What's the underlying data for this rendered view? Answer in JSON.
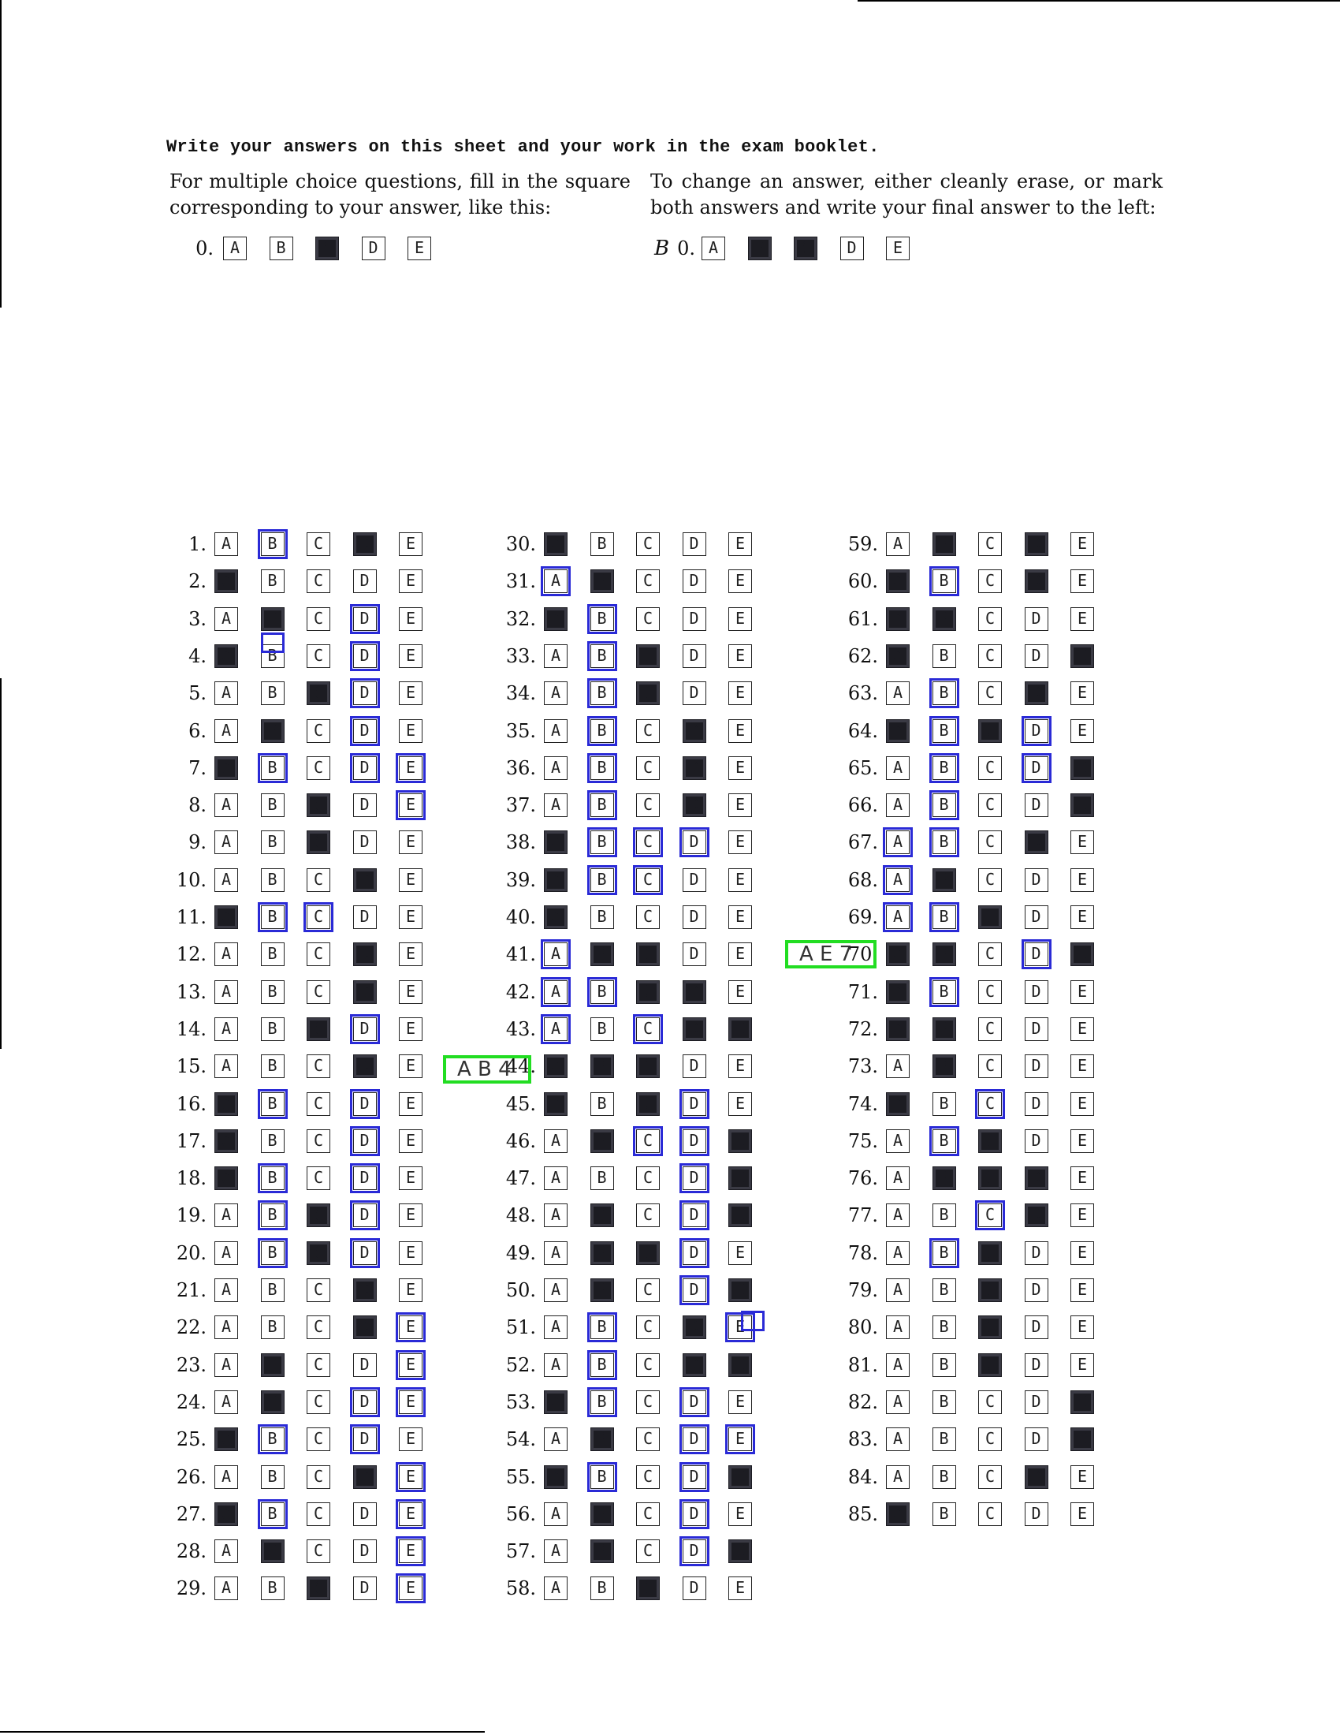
{
  "instructions": {
    "heading": "Write your answers on this sheet and your work in the exam booklet.",
    "left": "For multiple choice questions, fill in the square corresponding to your answer, like this:",
    "right": "To change an answer, either cleanly erase, or mark both answers and write your final answer to the left:"
  },
  "example_left": {
    "number": "0.",
    "filled": [
      "C"
    ]
  },
  "example_right": {
    "handwritten": "B",
    "number": "0.",
    "filled": [
      "B",
      "C"
    ]
  },
  "choices": [
    "A",
    "B",
    "C",
    "D",
    "E"
  ],
  "marks": [
    {
      "near": 44,
      "text": "A B 4"
    },
    {
      "near": 70,
      "text": "A E 7"
    }
  ],
  "questions": [
    {
      "n": 1,
      "filled": [
        "D"
      ],
      "outlined": [
        "B"
      ]
    },
    {
      "n": 2,
      "filled": [
        "A"
      ],
      "outlined": []
    },
    {
      "n": 3,
      "filled": [
        "B"
      ],
      "outlined": [
        "D"
      ]
    },
    {
      "n": 4,
      "filled": [
        "A"
      ],
      "outlined": [
        "D"
      ]
    },
    {
      "n": 5,
      "filled": [
        "C"
      ],
      "outlined": [
        "D"
      ]
    },
    {
      "n": 6,
      "filled": [
        "B"
      ],
      "outlined": [
        "D"
      ]
    },
    {
      "n": 7,
      "filled": [
        "A"
      ],
      "outlined": [
        "B",
        "D",
        "E"
      ]
    },
    {
      "n": 8,
      "filled": [
        "C"
      ],
      "outlined": [
        "E"
      ]
    },
    {
      "n": 9,
      "filled": [
        "C"
      ],
      "outlined": []
    },
    {
      "n": 10,
      "filled": [
        "D"
      ],
      "outlined": []
    },
    {
      "n": 11,
      "filled": [
        "A"
      ],
      "outlined": [
        "B",
        "C"
      ]
    },
    {
      "n": 12,
      "filled": [
        "D"
      ],
      "outlined": []
    },
    {
      "n": 13,
      "filled": [
        "D"
      ],
      "outlined": []
    },
    {
      "n": 14,
      "filled": [
        "C"
      ],
      "outlined": [
        "D"
      ]
    },
    {
      "n": 15,
      "filled": [
        "D"
      ],
      "outlined": []
    },
    {
      "n": 16,
      "filled": [
        "A"
      ],
      "outlined": [
        "B",
        "D"
      ]
    },
    {
      "n": 17,
      "filled": [
        "A"
      ],
      "outlined": [
        "D"
      ]
    },
    {
      "n": 18,
      "filled": [
        "A"
      ],
      "outlined": [
        "B",
        "D"
      ]
    },
    {
      "n": 19,
      "filled": [
        "C"
      ],
      "outlined": [
        "B",
        "D"
      ]
    },
    {
      "n": 20,
      "filled": [
        "C"
      ],
      "outlined": [
        "B",
        "D"
      ]
    },
    {
      "n": 21,
      "filled": [
        "D"
      ],
      "outlined": []
    },
    {
      "n": 22,
      "filled": [
        "D"
      ],
      "outlined": [
        "E"
      ]
    },
    {
      "n": 23,
      "filled": [
        "B"
      ],
      "outlined": [
        "E"
      ]
    },
    {
      "n": 24,
      "filled": [
        "B"
      ],
      "outlined": [
        "D",
        "E"
      ]
    },
    {
      "n": 25,
      "filled": [
        "A"
      ],
      "outlined": [
        "B",
        "D"
      ]
    },
    {
      "n": 26,
      "filled": [
        "D"
      ],
      "outlined": [
        "E"
      ]
    },
    {
      "n": 27,
      "filled": [
        "A"
      ],
      "outlined": [
        "B",
        "E"
      ]
    },
    {
      "n": 28,
      "filled": [
        "B"
      ],
      "outlined": [
        "E"
      ]
    },
    {
      "n": 29,
      "filled": [
        "C"
      ],
      "outlined": [
        "E"
      ]
    },
    {
      "n": 30,
      "filled": [
        "A"
      ],
      "outlined": []
    },
    {
      "n": 31,
      "filled": [
        "B"
      ],
      "outlined": [
        "A"
      ]
    },
    {
      "n": 32,
      "filled": [
        "A"
      ],
      "outlined": [
        "B"
      ]
    },
    {
      "n": 33,
      "filled": [
        "C"
      ],
      "outlined": [
        "B"
      ]
    },
    {
      "n": 34,
      "filled": [
        "C"
      ],
      "outlined": [
        "B"
      ]
    },
    {
      "n": 35,
      "filled": [
        "D"
      ],
      "outlined": [
        "B"
      ]
    },
    {
      "n": 36,
      "filled": [
        "D"
      ],
      "outlined": [
        "B"
      ]
    },
    {
      "n": 37,
      "filled": [
        "D"
      ],
      "outlined": [
        "B"
      ]
    },
    {
      "n": 38,
      "filled": [
        "A"
      ],
      "outlined": [
        "B",
        "C",
        "D"
      ]
    },
    {
      "n": 39,
      "filled": [
        "A"
      ],
      "outlined": [
        "B",
        "C"
      ]
    },
    {
      "n": 40,
      "filled": [
        "A"
      ],
      "outlined": []
    },
    {
      "n": 41,
      "filled": [
        "B",
        "C"
      ],
      "outlined": [
        "A"
      ]
    },
    {
      "n": 42,
      "filled": [
        "C",
        "D"
      ],
      "outlined": [
        "A",
        "B"
      ]
    },
    {
      "n": 43,
      "filled": [
        "D",
        "E"
      ],
      "outlined": [
        "A",
        "C"
      ]
    },
    {
      "n": 44,
      "filled": [
        "A",
        "B",
        "C"
      ],
      "outlined": []
    },
    {
      "n": 45,
      "filled": [
        "A",
        "C"
      ],
      "outlined": [
        "D"
      ]
    },
    {
      "n": 46,
      "filled": [
        "B",
        "E"
      ],
      "outlined": [
        "C",
        "D"
      ]
    },
    {
      "n": 47,
      "filled": [
        "E"
      ],
      "outlined": [
        "D"
      ]
    },
    {
      "n": 48,
      "filled": [
        "B",
        "E"
      ],
      "outlined": [
        "D"
      ]
    },
    {
      "n": 49,
      "filled": [
        "B",
        "C"
      ],
      "outlined": [
        "D"
      ]
    },
    {
      "n": 50,
      "filled": [
        "B",
        "E"
      ],
      "outlined": [
        "D"
      ]
    },
    {
      "n": 51,
      "filled": [
        "D"
      ],
      "outlined": [
        "B",
        "E"
      ]
    },
    {
      "n": 52,
      "filled": [
        "D",
        "E"
      ],
      "outlined": [
        "B"
      ]
    },
    {
      "n": 53,
      "filled": [
        "A"
      ],
      "outlined": [
        "B",
        "D"
      ]
    },
    {
      "n": 54,
      "filled": [
        "B"
      ],
      "outlined": [
        "D",
        "E"
      ]
    },
    {
      "n": 55,
      "filled": [
        "A",
        "E"
      ],
      "outlined": [
        "B",
        "D"
      ]
    },
    {
      "n": 56,
      "filled": [
        "B"
      ],
      "outlined": [
        "D"
      ]
    },
    {
      "n": 57,
      "filled": [
        "B",
        "E"
      ],
      "outlined": [
        "D"
      ]
    },
    {
      "n": 58,
      "filled": [
        "C"
      ],
      "outlined": []
    },
    {
      "n": 59,
      "filled": [
        "B",
        "D"
      ],
      "outlined": []
    },
    {
      "n": 60,
      "filled": [
        "A",
        "D"
      ],
      "outlined": [
        "B"
      ]
    },
    {
      "n": 61,
      "filled": [
        "A",
        "B"
      ],
      "outlined": []
    },
    {
      "n": 62,
      "filled": [
        "A",
        "E"
      ],
      "outlined": []
    },
    {
      "n": 63,
      "filled": [
        "D"
      ],
      "outlined": [
        "B"
      ]
    },
    {
      "n": 64,
      "filled": [
        "A",
        "C"
      ],
      "outlined": [
        "B",
        "D"
      ]
    },
    {
      "n": 65,
      "filled": [
        "E"
      ],
      "outlined": [
        "B",
        "D"
      ]
    },
    {
      "n": 66,
      "filled": [
        "E"
      ],
      "outlined": [
        "B"
      ]
    },
    {
      "n": 67,
      "filled": [
        "D"
      ],
      "outlined": [
        "A",
        "B"
      ]
    },
    {
      "n": 68,
      "filled": [
        "B"
      ],
      "outlined": [
        "A"
      ]
    },
    {
      "n": 69,
      "filled": [
        "C"
      ],
      "outlined": [
        "A",
        "B"
      ]
    },
    {
      "n": 70,
      "filled": [
        "A",
        "B",
        "E"
      ],
      "outlined": [
        "D"
      ]
    },
    {
      "n": 71,
      "filled": [
        "A"
      ],
      "outlined": [
        "B"
      ]
    },
    {
      "n": 72,
      "filled": [
        "A",
        "B"
      ],
      "outlined": []
    },
    {
      "n": 73,
      "filled": [
        "B"
      ],
      "outlined": []
    },
    {
      "n": 74,
      "filled": [
        "A"
      ],
      "outlined": [
        "C"
      ]
    },
    {
      "n": 75,
      "filled": [
        "C"
      ],
      "outlined": [
        "B"
      ]
    },
    {
      "n": 76,
      "filled": [
        "B",
        "C",
        "D"
      ],
      "outlined": []
    },
    {
      "n": 77,
      "filled": [
        "D"
      ],
      "outlined": [
        "C"
      ]
    },
    {
      "n": 78,
      "filled": [
        "C"
      ],
      "outlined": [
        "B"
      ]
    },
    {
      "n": 79,
      "filled": [
        "C"
      ],
      "outlined": []
    },
    {
      "n": 80,
      "filled": [
        "C"
      ],
      "outlined": []
    },
    {
      "n": 81,
      "filled": [
        "C"
      ],
      "outlined": []
    },
    {
      "n": 82,
      "filled": [
        "E"
      ],
      "outlined": []
    },
    {
      "n": 83,
      "filled": [
        "E"
      ],
      "outlined": []
    },
    {
      "n": 84,
      "filled": [
        "D"
      ],
      "outlined": []
    },
    {
      "n": 85,
      "filled": [
        "A"
      ],
      "outlined": []
    }
  ]
}
